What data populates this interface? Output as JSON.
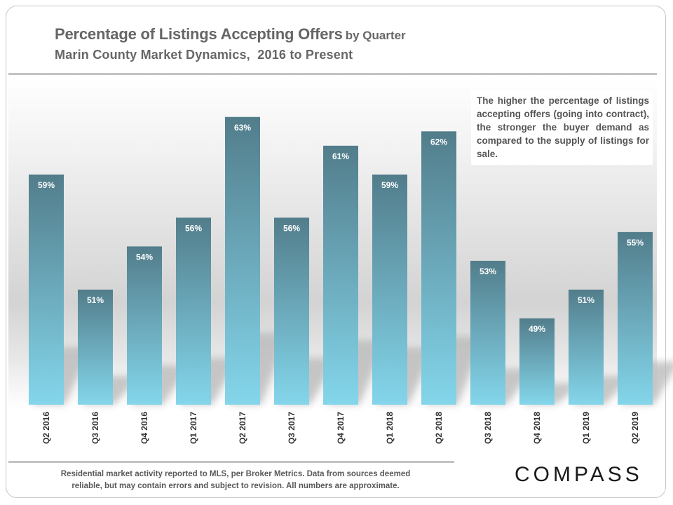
{
  "chart_data": {
    "type": "bar",
    "title": "Percentage of Listings Accepting Offers",
    "title_suffix": "by Quarter",
    "subtitle": "Marin County Market Dynamics,  2016 to Present",
    "categories": [
      "Q2 2016",
      "Q3 2016",
      "Q4 2016",
      "Q1 2017",
      "Q2 2017",
      "Q3 2017",
      "Q4 2017",
      "Q1 2018",
      "Q2 2018",
      "Q3 2018",
      "Q4 2018",
      "Q1 2019",
      "Q2 2019"
    ],
    "values": [
      59,
      51,
      54,
      56,
      63,
      56,
      61,
      59,
      62,
      53,
      49,
      51,
      55
    ],
    "value_labels": [
      "59%",
      "51%",
      "54%",
      "56%",
      "63%",
      "56%",
      "61%",
      "59%",
      "62%",
      "53%",
      "49%",
      "51%",
      "55%"
    ],
    "xlabel": "",
    "ylabel": "",
    "ylim": [
      43,
      64.5
    ],
    "grid": false,
    "legend": "none",
    "annotation": "The higher the percentage of listings accepting offers (going into contract), the stronger the buyer demand as compared to the supply of listings for sale.",
    "colors": {
      "bar_top": "#527d8b",
      "bar_bottom": "#84d6eb",
      "label": "#ffffff",
      "tick": "#333333"
    }
  },
  "footer": {
    "note_line1": "Residential market activity reported to MLS, per Broker Metrics. Data from sources deemed",
    "note_line2": "reliable, but may contain errors and subject to revision. All numbers are approximate.",
    "brand": "COMPASS"
  }
}
